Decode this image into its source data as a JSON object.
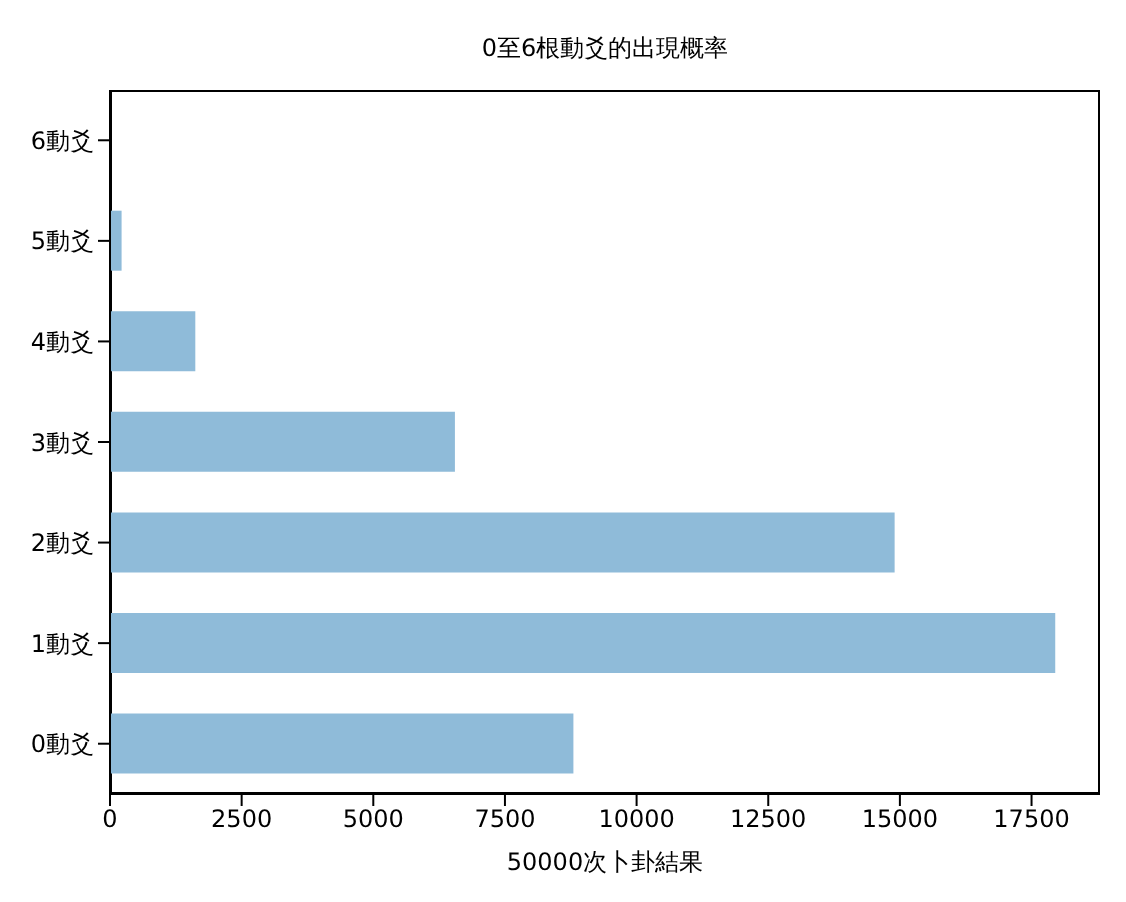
{
  "chart_data": {
    "type": "bar",
    "orientation": "horizontal",
    "title": "0至6根動爻的出現概率",
    "xlabel": "50000次卜卦結果",
    "categories": [
      "6動爻",
      "5動爻",
      "4動爻",
      "3動爻",
      "2動爻",
      "1動爻",
      "0動爻"
    ],
    "values": [
      10,
      220,
      1620,
      6550,
      14900,
      17950,
      8800
    ],
    "color": "#8fbbd9",
    "xlim": [
      0,
      18800
    ],
    "xticks": [
      0,
      2500,
      5000,
      7500,
      10000,
      12500,
      15000,
      17500
    ],
    "grid": false
  }
}
